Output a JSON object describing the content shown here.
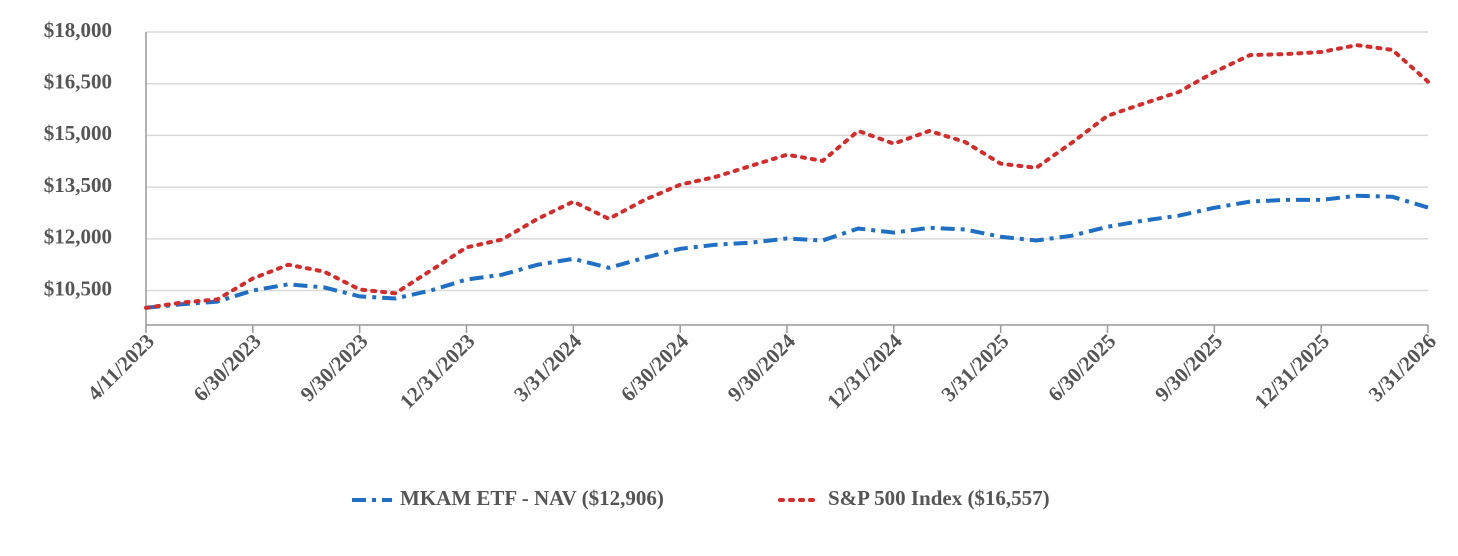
{
  "chart_data": {
    "type": "line",
    "categories": [
      "4/11/2023",
      null,
      null,
      "6/30/2023",
      null,
      null,
      "9/30/2023",
      null,
      null,
      "12/31/2023",
      null,
      null,
      "3/31/2024",
      null,
      null,
      "6/30/2024",
      null,
      null,
      "9/30/2024",
      null,
      null,
      "12/31/2024",
      null,
      null,
      "3/31/2025",
      null,
      null,
      "6/30/2025",
      null,
      null,
      "9/30/2025",
      null,
      null,
      "12/31/2025",
      null,
      null,
      "3/31/2026"
    ],
    "series": [
      {
        "name": "MKAM ETF - NAV ($12,906)",
        "color": "#1f6fc5",
        "dash": "dashdot",
        "values": [
          10000,
          10100,
          10180,
          10500,
          10680,
          10590,
          10330,
          10270,
          10500,
          10820,
          10960,
          11250,
          11420,
          11160,
          11450,
          11710,
          11830,
          11890,
          12010,
          11950,
          12300,
          12180,
          12320,
          12270,
          12060,
          11950,
          12090,
          12350,
          12530,
          12670,
          12900,
          13080,
          13130,
          13130,
          13250,
          13220,
          12906
        ]
      },
      {
        "name": "S&P 500 Index ($16,557)",
        "color": "#d62b2b",
        "dash": "dotted",
        "values": [
          10000,
          10150,
          10240,
          10850,
          11250,
          11050,
          10530,
          10420,
          11080,
          11750,
          11980,
          12580,
          13080,
          12580,
          13130,
          13570,
          13800,
          14120,
          14440,
          14260,
          15130,
          14760,
          15130,
          14810,
          14180,
          14060,
          14790,
          15570,
          15920,
          16260,
          16840,
          17330,
          17360,
          17420,
          17620,
          17480,
          16557
        ]
      }
    ],
    "ylim": [
      9500,
      18000
    ],
    "yticks": [
      {
        "value": 10500,
        "label": "$10,500"
      },
      {
        "value": 12000,
        "label": "$12,000"
      },
      {
        "value": 13500,
        "label": "$13,500"
      },
      {
        "value": 15000,
        "label": "$15,000"
      },
      {
        "value": 16500,
        "label": "$16,500"
      },
      {
        "value": 18000,
        "label": "$18,000"
      }
    ],
    "grid": true
  }
}
